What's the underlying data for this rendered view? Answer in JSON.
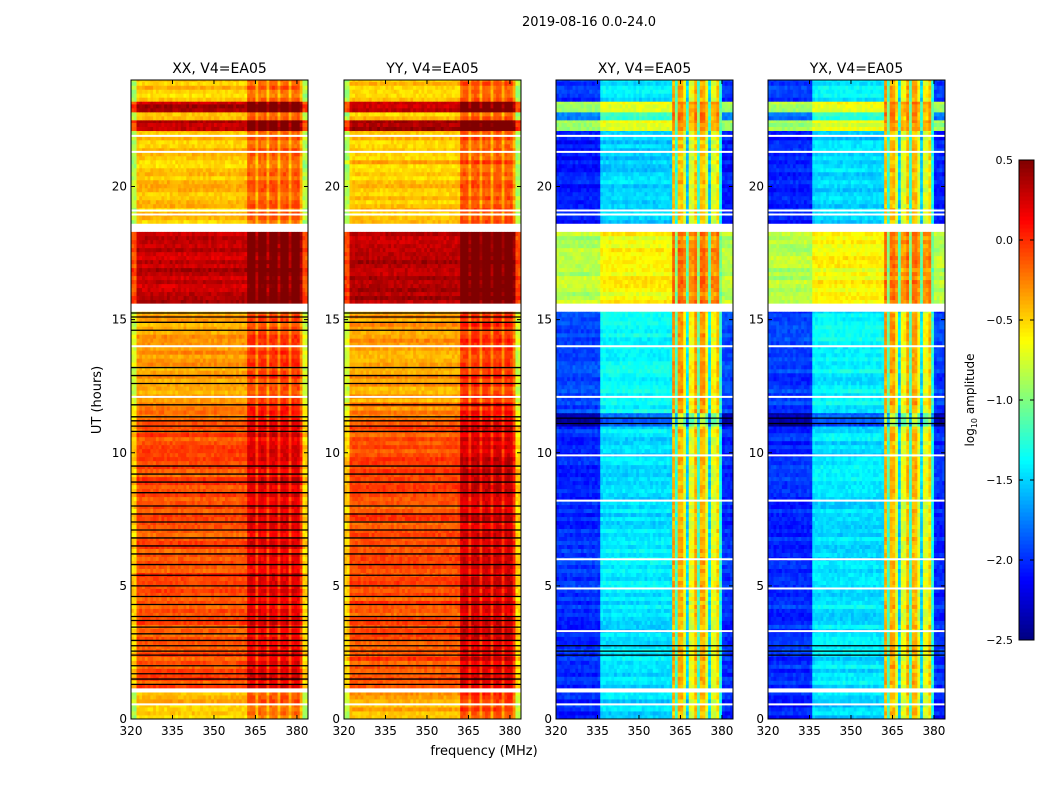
{
  "chart_data": {
    "type": "heatmap",
    "title": "2019-08-16 0.0-24.0",
    "xlabel": "frequency (MHz)",
    "ylabel": "UT (hours)",
    "xlim": [
      320,
      384
    ],
    "ylim": [
      0,
      24
    ],
    "xticks": [
      "320",
      "335",
      "350",
      "365",
      "380"
    ],
    "yticks": [
      "0",
      "5",
      "10",
      "15",
      "20"
    ],
    "colorbar": {
      "label_main": "log",
      "label_sub": "10",
      "label_rest": " amplitude",
      "cmap": "jet",
      "vmin": -2.5,
      "vmax": 0.5,
      "ticks": [
        "0.5",
        "0.0",
        "−0.5",
        "−1.0",
        "−1.5",
        "−2.0",
        "−2.5"
      ],
      "tick_values": [
        0.5,
        0.0,
        -0.5,
        -1.0,
        -1.5,
        -2.0,
        -2.5
      ]
    },
    "panels": [
      {
        "title": "XX, V4=EA05",
        "kind": "parallel",
        "segments": [
          [
            0,
            1.0,
            -0.45
          ],
          [
            1.15,
            11.3,
            -0.1
          ],
          [
            11.3,
            11.9,
            -0.25
          ],
          [
            11.9,
            15.3,
            -0.35
          ],
          [
            15.6,
            18.3,
            0.3
          ],
          [
            18.6,
            22.1,
            -0.45
          ],
          [
            22.1,
            22.5,
            0.35
          ],
          [
            22.5,
            22.8,
            -0.5
          ],
          [
            22.8,
            23.2,
            0.35
          ],
          [
            23.2,
            24,
            -0.45
          ]
        ],
        "freq_offsets": [
          [
            320,
            322,
            -0.4
          ],
          [
            362,
            382,
            0.3
          ],
          [
            382,
            384,
            -0.4
          ]
        ],
        "white_lines": [
          0.55,
          1.07,
          15.4,
          15.5,
          18.45,
          18.95,
          19.1,
          21.3,
          21.9,
          14.0,
          12.1
        ],
        "black_lines": [
          1.3,
          1.5,
          1.7,
          2.0,
          2.4,
          2.55,
          2.75,
          2.95,
          3.2,
          3.45,
          3.7,
          3.85,
          4.3,
          4.6,
          5.0,
          5.4,
          5.8,
          6.2,
          6.5,
          6.8,
          7.1,
          7.4,
          7.7,
          8.0,
          8.5,
          8.9,
          9.2,
          9.5,
          10.8,
          11.0,
          11.2,
          11.35,
          11.8,
          12.6,
          12.9,
          13.2,
          14.6,
          14.9,
          15.1,
          15.25
        ]
      },
      {
        "title": "YY, V4=EA05",
        "kind": "parallel",
        "segments": [
          [
            0,
            1.0,
            -0.4
          ],
          [
            1.15,
            11.3,
            -0.1
          ],
          [
            11.3,
            11.9,
            -0.25
          ],
          [
            11.9,
            15.3,
            -0.35
          ],
          [
            15.6,
            18.3,
            0.35
          ],
          [
            18.6,
            22.1,
            -0.45
          ],
          [
            22.1,
            22.5,
            0.35
          ],
          [
            22.5,
            22.8,
            -0.5
          ],
          [
            22.8,
            23.2,
            0.35
          ],
          [
            23.2,
            24,
            -0.45
          ]
        ],
        "freq_offsets": [
          [
            320,
            322,
            -0.4
          ],
          [
            362,
            382,
            0.35
          ],
          [
            382,
            384,
            -0.4
          ]
        ],
        "white_lines": [
          0.55,
          1.07,
          15.4,
          15.5,
          18.45,
          18.95,
          19.1,
          21.3,
          21.9,
          14.0,
          12.1
        ],
        "black_lines": [
          1.3,
          1.5,
          1.7,
          2.0,
          2.4,
          2.55,
          2.75,
          2.95,
          3.2,
          3.45,
          3.7,
          3.85,
          4.3,
          4.6,
          5.0,
          5.4,
          5.8,
          6.2,
          6.5,
          6.8,
          7.1,
          7.4,
          7.7,
          8.0,
          8.5,
          8.9,
          9.2,
          9.5,
          10.8,
          11.0,
          11.2,
          11.35,
          11.8,
          12.6,
          12.9,
          13.2,
          14.6,
          14.9,
          15.1,
          15.25
        ]
      },
      {
        "title": "XY, V4=EA05",
        "kind": "cross",
        "segments": [
          [
            0,
            1.0,
            -2.05
          ],
          [
            1.15,
            11.0,
            -2.0
          ],
          [
            11.0,
            11.5,
            -2.4
          ],
          [
            11.5,
            15.3,
            -1.95
          ],
          [
            15.6,
            18.3,
            -0.85
          ],
          [
            18.6,
            22.1,
            -2.05
          ],
          [
            22.1,
            22.5,
            -0.9
          ],
          [
            22.5,
            22.8,
            -1.8
          ],
          [
            22.8,
            23.2,
            -0.9
          ],
          [
            23.2,
            24,
            -2.0
          ]
        ],
        "freq_offsets": [
          [
            336,
            362,
            0.55
          ],
          [
            362,
            366,
            1.6
          ],
          [
            366,
            370,
            1.3
          ],
          [
            370,
            374,
            1.6
          ],
          [
            374,
            378,
            1.3
          ],
          [
            378,
            380,
            1.5
          ]
        ],
        "white_lines": [
          0.55,
          1.07,
          15.4,
          15.5,
          18.45,
          18.95,
          19.1,
          21.3,
          21.9,
          14.0,
          12.1,
          9.9,
          8.2,
          6.0,
          4.9,
          3.3
        ],
        "black_lines": [
          2.4,
          2.55,
          2.75,
          11.1,
          11.3
        ]
      },
      {
        "title": "YX, V4=EA05",
        "kind": "cross",
        "segments": [
          [
            0,
            1.0,
            -2.05
          ],
          [
            1.15,
            11.0,
            -2.0
          ],
          [
            11.0,
            11.5,
            -2.4
          ],
          [
            11.5,
            15.3,
            -1.95
          ],
          [
            15.6,
            18.3,
            -0.85
          ],
          [
            18.6,
            22.1,
            -2.05
          ],
          [
            22.1,
            22.5,
            -0.9
          ],
          [
            22.5,
            22.8,
            -1.8
          ],
          [
            22.8,
            23.2,
            -0.9
          ],
          [
            23.2,
            24,
            -2.0
          ]
        ],
        "freq_offsets": [
          [
            336,
            362,
            0.55
          ],
          [
            362,
            366,
            1.6
          ],
          [
            366,
            370,
            1.3
          ],
          [
            370,
            374,
            1.6
          ],
          [
            374,
            378,
            1.3
          ],
          [
            378,
            380,
            1.5
          ]
        ],
        "white_lines": [
          0.55,
          1.07,
          15.4,
          15.5,
          18.45,
          18.95,
          19.1,
          21.3,
          21.9,
          14.0,
          12.1,
          9.9,
          8.2,
          6.0,
          4.9,
          3.3
        ],
        "black_lines": [
          2.4,
          2.55,
          2.75,
          11.1,
          11.3
        ]
      }
    ]
  }
}
